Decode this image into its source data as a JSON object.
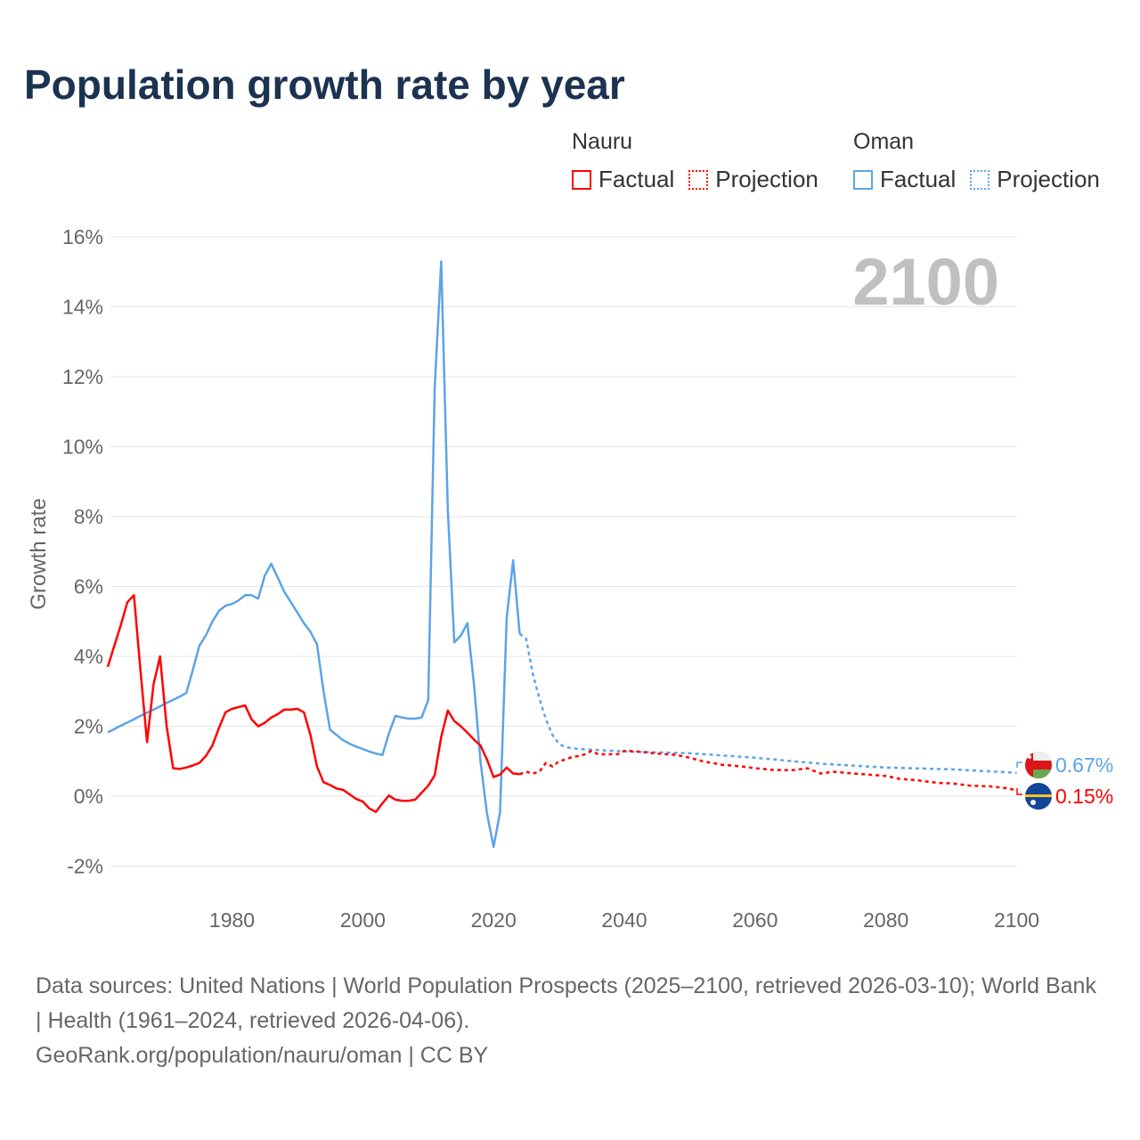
{
  "title": "Population growth rate by year",
  "legend": [
    {
      "country": "Nauru",
      "color": "#ff0000",
      "factual": "Factual",
      "projection": "Projection"
    },
    {
      "country": "Oman",
      "color": "#5ba4e8",
      "factual": "Factual",
      "projection": "Projection"
    }
  ],
  "year_display": "2100",
  "sources": "Data sources: United Nations | World Population Prospects (2025–2100, retrieved 2026-03-10); World Bank | Health (1961–2024, retrieved 2026-04-06).",
  "credit": "GeoRank.org/population/nauru/oman | CC BY",
  "end_labels": {
    "oman": "0.67%",
    "nauru": "0.15%"
  },
  "chart_data": {
    "type": "line",
    "title": "Population growth rate by year",
    "xlabel": "",
    "ylabel": "Growth rate",
    "xlim": [
      1961,
      2100
    ],
    "ylim": [
      -3,
      16.5
    ],
    "xticks": [
      "1980",
      "2000",
      "2020",
      "2040",
      "2060",
      "2080",
      "2100"
    ],
    "xtick_values": [
      1980,
      2000,
      2020,
      2040,
      2060,
      2080,
      2100
    ],
    "yticks": [
      "-2%",
      "0%",
      "2%",
      "4%",
      "6%",
      "8%",
      "10%",
      "12%",
      "14%",
      "16%"
    ],
    "ytick_values": [
      -2,
      0,
      2,
      4,
      6,
      8,
      10,
      12,
      14,
      16
    ],
    "grid": true,
    "series": [
      {
        "name": "Oman",
        "color": "#5ba4e8",
        "factual_start": 1961,
        "factual": [
          1.83,
          1.92,
          2.02,
          2.11,
          2.2,
          2.3,
          2.39,
          2.48,
          2.57,
          2.67,
          2.76,
          2.85,
          2.95,
          3.6,
          4.3,
          4.6,
          5.0,
          5.3,
          5.45,
          5.5,
          5.6,
          5.75,
          5.75,
          5.65,
          6.3,
          6.65,
          6.25,
          5.85,
          5.55,
          5.25,
          4.95,
          4.7,
          4.35,
          3.0,
          1.9,
          1.75,
          1.6,
          1.5,
          1.42,
          1.35,
          1.28,
          1.22,
          1.18,
          1.8,
          2.3,
          2.25,
          2.22,
          2.22,
          2.25,
          2.75,
          11.7,
          15.3,
          8.2,
          4.4,
          4.6,
          4.95,
          3.2,
          1.0,
          -0.5,
          -1.45,
          -0.45,
          5.1,
          6.75,
          4.65
        ],
        "projection": [
          [
            2024,
            4.65
          ],
          [
            2025,
            4.5
          ],
          [
            2026,
            3.5
          ],
          [
            2027,
            2.8
          ],
          [
            2028,
            2.2
          ],
          [
            2029,
            1.75
          ],
          [
            2030,
            1.5
          ],
          [
            2031,
            1.4
          ],
          [
            2033,
            1.35
          ],
          [
            2040,
            1.28
          ],
          [
            2050,
            1.23
          ],
          [
            2060,
            1.1
          ],
          [
            2070,
            0.93
          ],
          [
            2080,
            0.82
          ],
          [
            2090,
            0.77
          ],
          [
            2100,
            0.67
          ]
        ]
      },
      {
        "name": "Nauru",
        "color": "#ff0000",
        "factual_start": 1961,
        "factual": [
          3.7,
          4.3,
          4.9,
          5.55,
          5.75,
          3.6,
          1.55,
          3.2,
          4.0,
          2.0,
          0.8,
          0.78,
          0.82,
          0.88,
          0.95,
          1.15,
          1.45,
          1.95,
          2.4,
          2.5,
          2.55,
          2.6,
          2.2,
          2.0,
          2.1,
          2.25,
          2.35,
          2.48,
          2.48,
          2.5,
          2.4,
          1.75,
          0.85,
          0.4,
          0.32,
          0.22,
          0.18,
          0.05,
          -0.08,
          -0.15,
          -0.35,
          -0.45,
          -0.2,
          0.02,
          -0.1,
          -0.13,
          -0.13,
          -0.1,
          0.1,
          0.3,
          0.6,
          1.7,
          2.45,
          2.15,
          2.0,
          1.82,
          1.62,
          1.45,
          1.05,
          0.55,
          0.62,
          0.82,
          0.65,
          0.63
        ],
        "projection": [
          [
            2024,
            0.63
          ],
          [
            2025,
            0.7
          ],
          [
            2026,
            0.65
          ],
          [
            2027,
            0.7
          ],
          [
            2028,
            0.95
          ],
          [
            2029,
            0.85
          ],
          [
            2030,
            1.0
          ],
          [
            2031,
            1.05
          ],
          [
            2032,
            1.12
          ],
          [
            2033,
            1.15
          ],
          [
            2034,
            1.2
          ],
          [
            2035,
            1.3
          ],
          [
            2036,
            1.2
          ],
          [
            2039,
            1.2
          ],
          [
            2040,
            1.3
          ],
          [
            2042,
            1.28
          ],
          [
            2045,
            1.22
          ],
          [
            2048,
            1.18
          ],
          [
            2050,
            1.1
          ],
          [
            2052,
            1.0
          ],
          [
            2055,
            0.9
          ],
          [
            2058,
            0.85
          ],
          [
            2060,
            0.8
          ],
          [
            2063,
            0.75
          ],
          [
            2066,
            0.75
          ],
          [
            2068,
            0.8
          ],
          [
            2070,
            0.65
          ],
          [
            2072,
            0.7
          ],
          [
            2075,
            0.65
          ],
          [
            2080,
            0.58
          ],
          [
            2082,
            0.5
          ],
          [
            2085,
            0.45
          ],
          [
            2088,
            0.38
          ],
          [
            2090,
            0.37
          ],
          [
            2093,
            0.3
          ],
          [
            2096,
            0.28
          ],
          [
            2099,
            0.22
          ],
          [
            2100,
            0.15
          ]
        ]
      }
    ]
  }
}
